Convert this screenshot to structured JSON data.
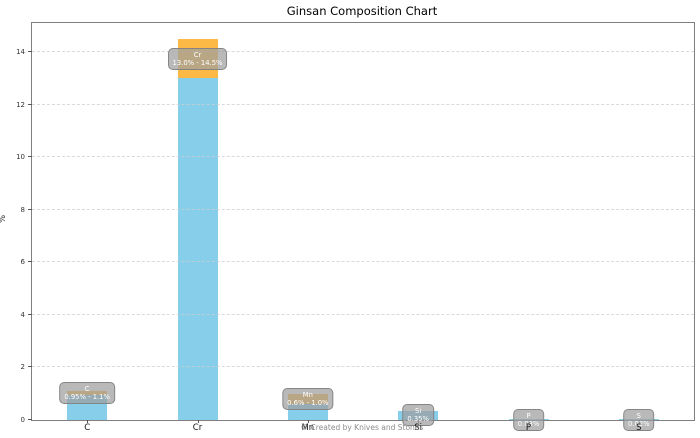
{
  "page": {
    "title": "Ginsan Composition Chart",
    "footer": "© Created by Knives and Stones"
  },
  "chart_data": {
    "type": "bar",
    "title": "Ginsan Composition Chart",
    "xlabel": "",
    "ylabel": "%",
    "ylim": [
      0,
      15.1
    ],
    "yticks": [
      0,
      2,
      4,
      6,
      8,
      10,
      12,
      14
    ],
    "grid": true,
    "legend": false,
    "footer": "© Created by Knives and Stones",
    "categories": [
      "C",
      "Cr",
      "Mn",
      "Si",
      "P",
      "S"
    ],
    "bars": [
      {
        "element": "C",
        "min": 0.95,
        "max": 1.1,
        "label": "0.95% - 1.1%"
      },
      {
        "element": "Cr",
        "min": 13.0,
        "max": 14.5,
        "label": "13.0% - 14.5%"
      },
      {
        "element": "Mn",
        "min": 0.6,
        "max": 1.0,
        "label": "0.6% - 1.0%"
      },
      {
        "element": "Si",
        "min": 0.35,
        "max": null,
        "label": "0.35%"
      },
      {
        "element": "P",
        "min": 0.03,
        "max": null,
        "label": "0.03%"
      },
      {
        "element": "S",
        "min": 0.02,
        "max": null,
        "label": "0.02%"
      }
    ],
    "colors": {
      "bar_fill": "#87CEEB",
      "range_band_fill": "#FCB945",
      "annotation_fill": "#9E9E9E",
      "annotation_border": "#7F7F7F",
      "annotation_text": "#FFFFFF"
    }
  }
}
